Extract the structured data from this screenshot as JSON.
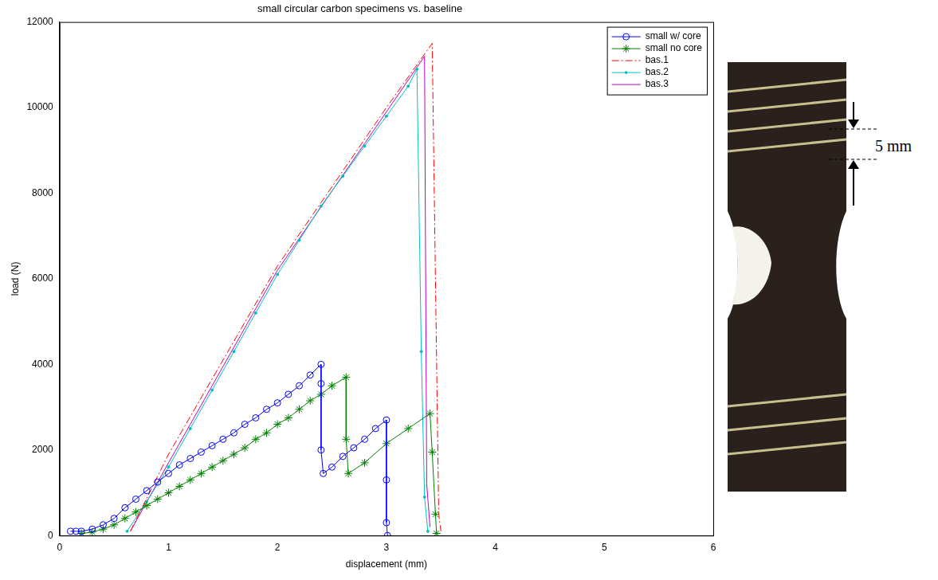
{
  "chart_data": {
    "type": "line",
    "title": "small circular carbon specimens vs. baseline",
    "x_label": "displacement (mm)",
    "y_label": "load (N)",
    "xlim": [
      0,
      6
    ],
    "xticks": [
      0,
      1,
      2,
      3,
      4,
      5,
      6
    ],
    "ylim": [
      0,
      12000
    ],
    "yticks": [
      0,
      2000,
      4000,
      6000,
      8000,
      10000,
      12000
    ],
    "grid": false,
    "legend": "upper right",
    "series": [
      {
        "name": "small w/ core",
        "color": "#0000ff",
        "marker": "circle",
        "line_style": "solid",
        "x": [
          0.1,
          0.15,
          0.2,
          0.3,
          0.4,
          0.5,
          0.6,
          0.7,
          0.8,
          0.9,
          1.0,
          1.1,
          1.2,
          1.3,
          1.4,
          1.5,
          1.6,
          1.7,
          1.8,
          1.9,
          2.0,
          2.1,
          2.2,
          2.3,
          2.4,
          2.4,
          2.4,
          2.42,
          2.5,
          2.6,
          2.7,
          2.8,
          2.9,
          3.0,
          3.0,
          3.0,
          3.01
        ],
        "values": [
          100,
          100,
          100,
          150,
          250,
          400,
          650,
          850,
          1050,
          1250,
          1450,
          1650,
          1800,
          1950,
          2100,
          2250,
          2400,
          2600,
          2750,
          2950,
          3100,
          3300,
          3500,
          3750,
          4000,
          3550,
          2000,
          1450,
          1600,
          1850,
          2050,
          2250,
          2500,
          2700,
          1300,
          300,
          0
        ]
      },
      {
        "name": "small no core",
        "color": "#008000",
        "marker": "star",
        "line_style": "solid",
        "x": [
          0.2,
          0.3,
          0.4,
          0.5,
          0.6,
          0.7,
          0.8,
          0.9,
          1.0,
          1.1,
          1.2,
          1.3,
          1.4,
          1.5,
          1.6,
          1.7,
          1.8,
          1.9,
          2.0,
          2.1,
          2.2,
          2.3,
          2.4,
          2.5,
          2.63,
          2.63,
          2.65,
          2.8,
          3.0,
          3.2,
          3.4,
          3.42,
          3.45,
          3.46
        ],
        "values": [
          50,
          80,
          150,
          250,
          400,
          550,
          700,
          850,
          1000,
          1150,
          1300,
          1450,
          1600,
          1750,
          1900,
          2050,
          2250,
          2400,
          2600,
          2750,
          2950,
          3150,
          3300,
          3500,
          3700,
          2250,
          1450,
          1700,
          2150,
          2500,
          2850,
          1950,
          500,
          50
        ]
      },
      {
        "name": "bas.1",
        "color": "#ff0000",
        "line_style": "dash-dot",
        "x": [
          0.65,
          1.0,
          2.0,
          3.0,
          3.42,
          3.48,
          3.5
        ],
        "values": [
          100,
          1900,
          6300,
          10000,
          11500,
          500,
          100
        ]
      },
      {
        "name": "bas.2",
        "color": "#00bfbf",
        "marker": "point",
        "line_style": "solid",
        "x": [
          0.62,
          0.8,
          1.0,
          1.2,
          1.4,
          1.6,
          1.8,
          2.0,
          2.2,
          2.4,
          2.6,
          2.8,
          3.0,
          3.2,
          3.28,
          3.32,
          3.35,
          3.38
        ],
        "values": [
          100,
          800,
          1600,
          2500,
          3400,
          4300,
          5200,
          6100,
          6900,
          7700,
          8400,
          9100,
          9800,
          10500,
          10900,
          4300,
          900,
          100
        ]
      },
      {
        "name": "bas.3",
        "color": "#bf00bf",
        "line_style": "solid",
        "x": [
          0.65,
          1.0,
          2.0,
          3.0,
          3.35,
          3.37,
          3.4
        ],
        "values": [
          100,
          1700,
          6200,
          9900,
          11200,
          1200,
          200
        ]
      }
    ]
  },
  "photo": {
    "label": "5 mm"
  }
}
